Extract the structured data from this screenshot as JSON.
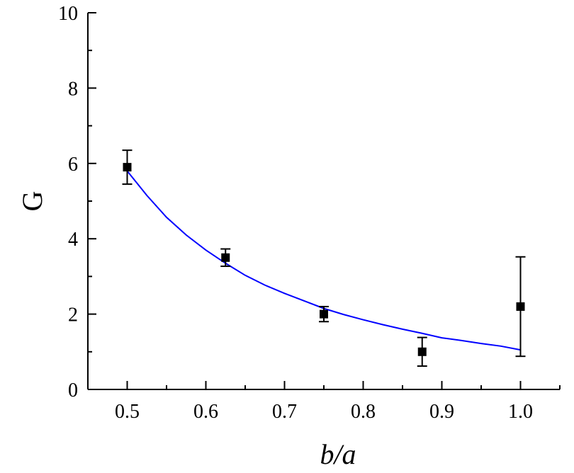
{
  "chart_data": {
    "type": "scatter",
    "title": "",
    "xlabel": "b/a",
    "ylabel": "G",
    "xlim": [
      0.45,
      1.05
    ],
    "ylim": [
      0,
      10
    ],
    "xticks": [
      "0.5",
      "0.6",
      "0.7",
      "0.8",
      "0.9",
      "1.0"
    ],
    "yticks": [
      "0",
      "2",
      "4",
      "6",
      "8",
      "10"
    ],
    "grid": false,
    "series": [
      {
        "type": "scatter",
        "marker": "square",
        "color": "#000000",
        "points": [
          {
            "x": 0.5,
            "y": 5.9,
            "err_low": 0.45,
            "err_high": 0.45
          },
          {
            "x": 0.625,
            "y": 3.5,
            "err_low": 0.23,
            "err_high": 0.23
          },
          {
            "x": 0.75,
            "y": 2.0,
            "err_low": 0.2,
            "err_high": 0.2
          },
          {
            "x": 0.875,
            "y": 1.0,
            "err_low": 0.38,
            "err_high": 0.38
          },
          {
            "x": 1.0,
            "y": 2.2,
            "err_low": 1.32,
            "err_high": 1.32
          }
        ]
      },
      {
        "type": "line",
        "color": "#0000ff",
        "x": [
          0.5,
          0.525,
          0.55,
          0.575,
          0.6,
          0.625,
          0.65,
          0.675,
          0.7,
          0.725,
          0.75,
          0.775,
          0.8,
          0.825,
          0.85,
          0.875,
          0.9,
          0.925,
          0.95,
          0.975,
          1.0
        ],
        "y": [
          5.8,
          5.15,
          4.57,
          4.1,
          3.7,
          3.35,
          3.03,
          2.77,
          2.55,
          2.35,
          2.15,
          1.99,
          1.85,
          1.72,
          1.6,
          1.49,
          1.37,
          1.3,
          1.22,
          1.15,
          1.05
        ]
      }
    ]
  }
}
